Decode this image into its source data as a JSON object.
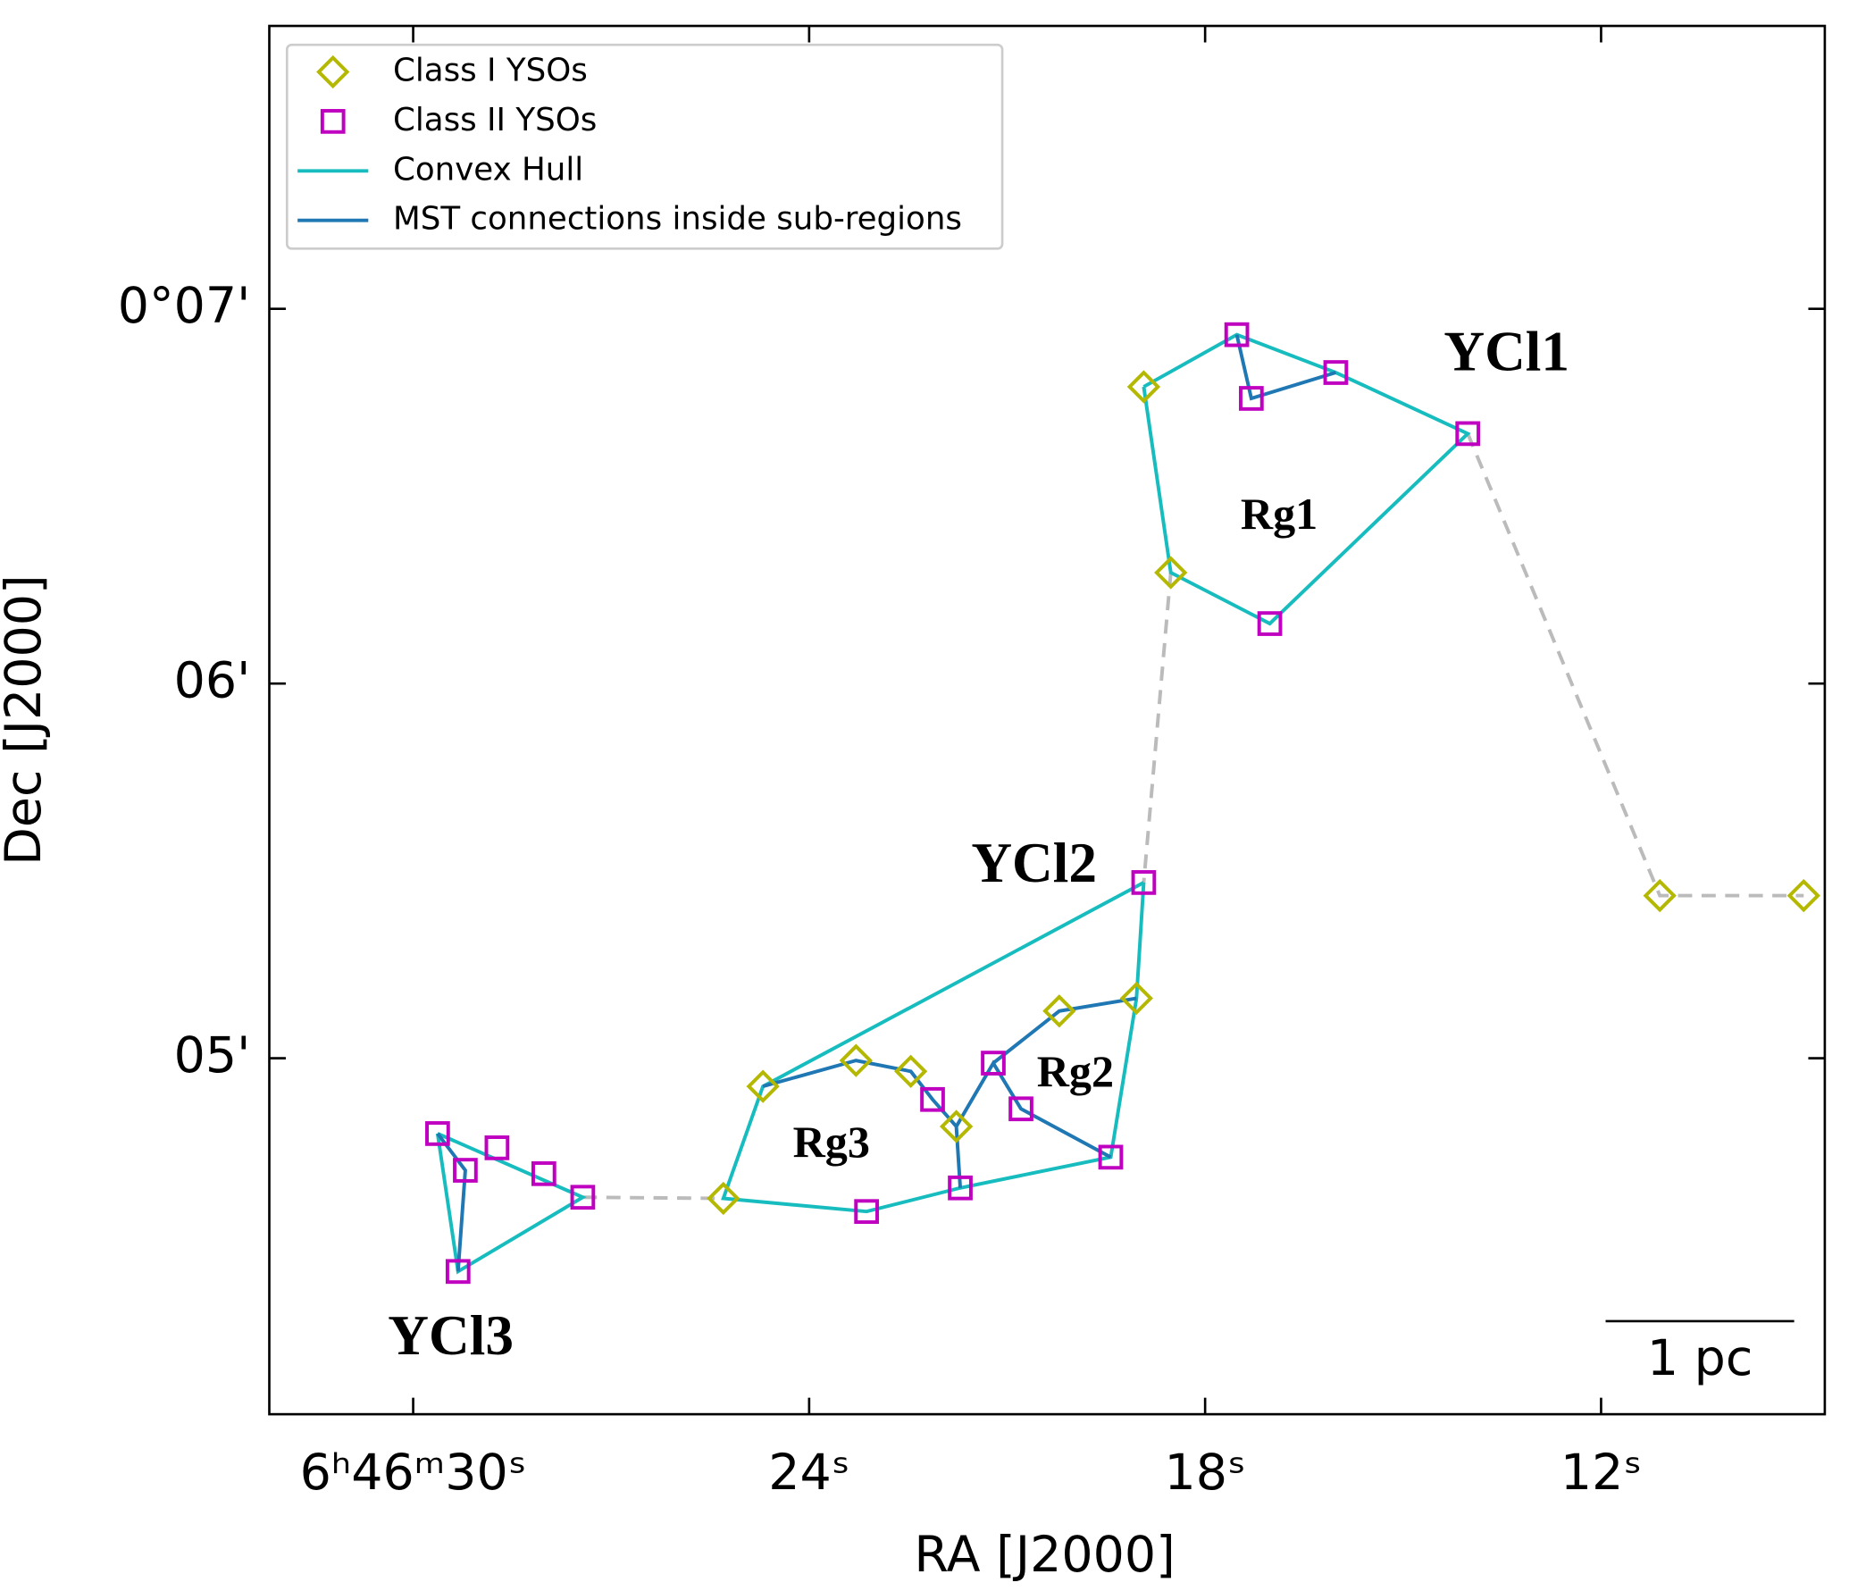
{
  "chart_data": {
    "type": "scatter",
    "x_label": "RA [J2000]",
    "y_label": "Dec [J2000]",
    "xlim": [
      32.18,
      8.61
    ],
    "ylim": [
      4.05,
      7.755
    ],
    "xticks": [
      {
        "value": 30,
        "label": "6ʰ46ᵐ30ˢ"
      },
      {
        "value": 24,
        "label": "24ˢ"
      },
      {
        "value": 18,
        "label": "18ˢ"
      },
      {
        "value": 12,
        "label": "12ˢ"
      }
    ],
    "yticks": [
      {
        "value": 5,
        "label": "05'"
      },
      {
        "value": 6,
        "label": "06'"
      },
      {
        "value": 7,
        "label": "0°07'"
      }
    ],
    "legend": "upper left",
    "series": [
      {
        "name": "Class I YSOs",
        "color": "#b5b800",
        "marker": "diamond",
        "x": [
          18.93,
          18.52,
          11.11,
          8.93,
          19.04,
          20.21,
          23.29,
          22.46,
          24.7,
          21.77,
          25.3
        ],
        "y": [
          6.792,
          6.296,
          5.434,
          5.434,
          5.16,
          5.126,
          4.994,
          4.965,
          4.925,
          4.818,
          4.626
        ]
      },
      {
        "name": "Class II YSOs",
        "color": "#c000c0",
        "marker": "square",
        "x": [
          17.52,
          17.3,
          16.02,
          14.02,
          17.02,
          18.93,
          21.21,
          22.13,
          20.79,
          19.43,
          21.71,
          23.13,
          29.63,
          29.21,
          28.73,
          28.02,
          27.43,
          29.32
        ],
        "y": [
          6.931,
          6.761,
          6.83,
          6.667,
          6.16,
          5.469,
          4.987,
          4.89,
          4.865,
          4.736,
          4.654,
          4.591,
          4.799,
          4.701,
          4.761,
          4.692,
          4.629,
          4.431
        ]
      },
      {
        "name": "Convex Hull",
        "color": "#17bcbf",
        "marker": "line",
        "x": [
          18.93,
          17.52,
          16.02,
          14.02,
          17.02,
          18.52,
          18.93,
          null,
          18.93,
          19.04,
          19.43,
          21.71,
          23.13,
          25.3,
          24.7,
          18.93,
          null,
          29.63,
          27.43,
          29.32,
          29.63
        ],
        "y": [
          6.792,
          6.931,
          6.83,
          6.667,
          6.16,
          6.296,
          6.792,
          null,
          5.469,
          5.16,
          4.736,
          4.654,
          4.591,
          4.626,
          4.925,
          5.469,
          null,
          4.799,
          4.629,
          4.431,
          4.799
        ]
      },
      {
        "name": "MST connections inside sub-regions",
        "color": "#1f77b4",
        "marker": "line",
        "x": [
          17.52,
          17.3,
          16.02,
          null,
          24.7,
          23.29,
          22.46,
          22.13,
          21.77,
          21.71,
          null,
          21.77,
          21.21,
          20.79,
          19.43,
          null,
          21.21,
          20.21,
          19.04,
          null,
          29.63,
          29.21,
          29.32
        ],
        "y": [
          6.931,
          6.761,
          6.83,
          null,
          4.925,
          4.994,
          4.965,
          4.89,
          4.818,
          4.654,
          null,
          4.818,
          4.987,
          4.865,
          4.736,
          null,
          4.987,
          5.126,
          5.16,
          null,
          4.799,
          4.701,
          4.431
        ]
      }
    ],
    "connections": {
      "color": "#bbbbbb",
      "dashed": true,
      "x": [
        14.02,
        11.11,
        8.93,
        null,
        18.52,
        18.93,
        null,
        27.43,
        25.3
      ],
      "y": [
        6.667,
        5.434,
        5.434,
        null,
        6.296,
        5.469,
        null,
        4.629,
        4.626
      ]
    },
    "annotations": [
      {
        "text": "YCl1",
        "color": "#ff0000"
      },
      {
        "text": "YCl2",
        "color": "#ff0000"
      },
      {
        "text": "YCl3",
        "color": "#ff0000"
      },
      {
        "text": "Rg1",
        "color": "#000000"
      },
      {
        "text": "Rg2",
        "color": "#000000"
      },
      {
        "text": "Rg3",
        "color": "#000000"
      }
    ],
    "scale_bar": "1 pc"
  }
}
